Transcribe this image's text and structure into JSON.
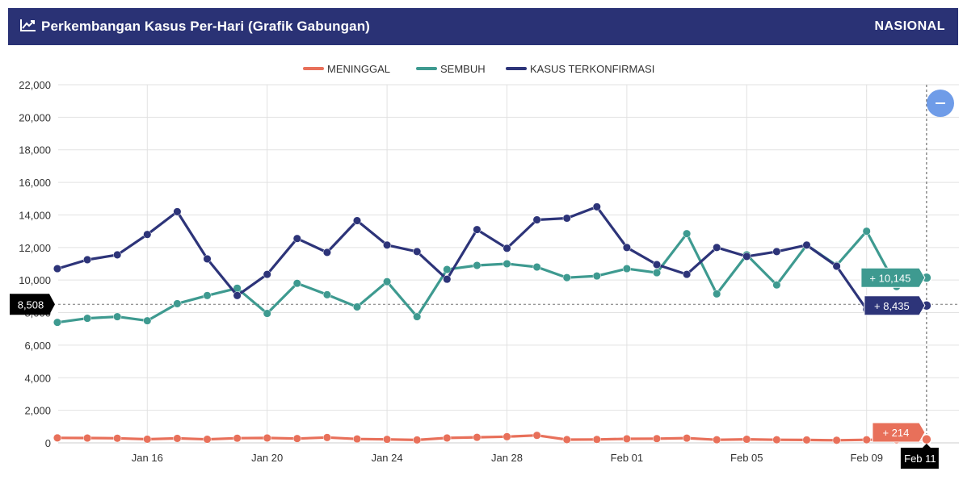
{
  "header": {
    "title": "Perkembangan Kasus Per-Hari (Grafik Gabungan)",
    "scope": "NASIONAL",
    "icon": "chart-line-icon"
  },
  "colors": {
    "header_bg": "#2a3275",
    "meninggal": "#e8705a",
    "sembuh": "#3e9a90",
    "kasus": "#2d3479",
    "zoom_button": "#6f9ce8"
  },
  "chart_data": {
    "type": "line",
    "ylim": [
      0,
      22000
    ],
    "y_ticks": [
      "0",
      "2,000",
      "4,000",
      "6,000",
      "8,000",
      "10,000",
      "12,000",
      "14,000",
      "16,000",
      "18,000",
      "20,000",
      "22,000"
    ],
    "x_ticks": [
      "Jan 16",
      "Jan 20",
      "Jan 24",
      "Jan 28",
      "Feb 01",
      "Feb 05",
      "Feb 09"
    ],
    "x": [
      "Jan 13",
      "Jan 14",
      "Jan 15",
      "Jan 16",
      "Jan 17",
      "Jan 18",
      "Jan 19",
      "Jan 20",
      "Jan 21",
      "Jan 22",
      "Jan 23",
      "Jan 24",
      "Jan 25",
      "Jan 26",
      "Jan 27",
      "Jan 28",
      "Jan 29",
      "Jan 30",
      "Jan 31",
      "Feb 01",
      "Feb 02",
      "Feb 03",
      "Feb 04",
      "Feb 05",
      "Feb 06",
      "Feb 07",
      "Feb 08",
      "Feb 09",
      "Feb 10",
      "Feb 11"
    ],
    "legend_position": "top-center",
    "grid": true,
    "series": [
      {
        "name": "MENINGGAL",
        "color": "#e8705a",
        "values": [
          306,
          295,
          283,
          225,
          275,
          220,
          285,
          300,
          265,
          330,
          240,
          215,
          180,
          300,
          340,
          380,
          460,
          200,
          210,
          250,
          260,
          290,
          190,
          220,
          190,
          180,
          160,
          190,
          190,
          214
        ]
      },
      {
        "name": "SEMBUH",
        "color": "#3e9a90",
        "values": [
          7400,
          7650,
          7750,
          7500,
          8550,
          9050,
          9500,
          7950,
          9800,
          9100,
          8350,
          9900,
          7750,
          10650,
          10900,
          11000,
          10800,
          10150,
          10250,
          10700,
          10450,
          12850,
          9150,
          11550,
          9700,
          12150,
          10900,
          13000,
          9600,
          10145
        ]
      },
      {
        "name": "KASUS TERKONFIRMASI",
        "color": "#2d3479",
        "values": [
          10700,
          11250,
          11550,
          12800,
          14200,
          11300,
          9050,
          10350,
          12550,
          11700,
          13650,
          12150,
          11750,
          10050,
          13100,
          11950,
          13700,
          13800,
          14500,
          12000,
          10950,
          10350,
          12000,
          11450,
          11750,
          12150,
          10850,
          8200,
          8600,
          8435
        ]
      }
    ],
    "tooltips": {
      "sembuh_last": "+ 10,145",
      "kasus_last": "+ 8,435",
      "meninggal_last": "+ 214",
      "crosshair_y_value": "8,508",
      "crosshair_x_value": "Feb 11"
    }
  }
}
